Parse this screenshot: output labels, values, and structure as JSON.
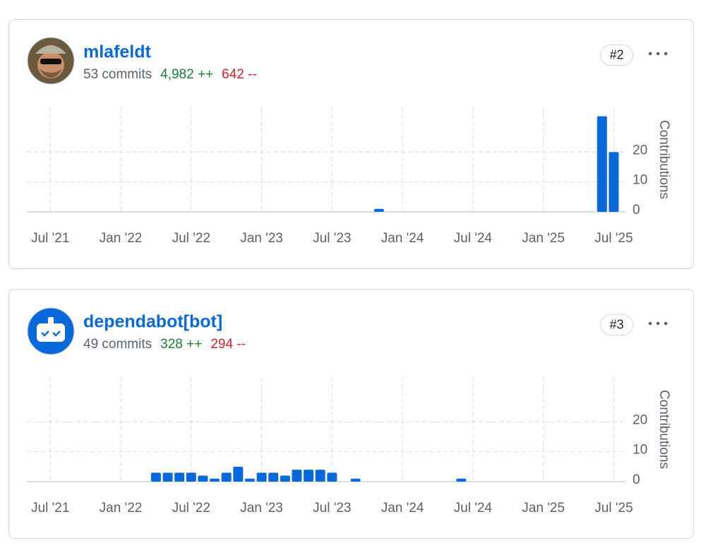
{
  "contributors": [
    {
      "name": "mlafeldt",
      "commits": "53 commits",
      "additions": "4,982 ++",
      "deletions": "642 --",
      "rank": "#2"
    },
    {
      "name": "dependabot[bot]",
      "commits": "49 commits",
      "additions": "328 ++",
      "deletions": "294 --",
      "rank": "#3"
    }
  ],
  "chart_data": [
    {
      "type": "bar",
      "ylabel": "Contributions",
      "color": "#0969da",
      "x": [
        "2023-11",
        "2025-06",
        "2025-07"
      ],
      "values": [
        1,
        32,
        20
      ],
      "xlim": [
        "2021-05",
        "2025-08"
      ],
      "xticks": [
        {
          "value": "2021-07",
          "label": "Jul '21"
        },
        {
          "value": "2022-01",
          "label": "Jan '22"
        },
        {
          "value": "2022-07",
          "label": "Jul '22"
        },
        {
          "value": "2023-01",
          "label": "Jan '23"
        },
        {
          "value": "2023-07",
          "label": "Jul '23"
        },
        {
          "value": "2024-01",
          "label": "Jan '24"
        },
        {
          "value": "2024-07",
          "label": "Jul '24"
        },
        {
          "value": "2025-01",
          "label": "Jan '25"
        },
        {
          "value": "2025-07",
          "label": "Jul '25"
        }
      ],
      "ylim": [
        0,
        35
      ],
      "yticks": [
        0,
        10,
        20
      ],
      "grid": true
    },
    {
      "type": "bar",
      "ylabel": "Contributions",
      "color": "#0969da",
      "x": [
        "2022-04",
        "2022-05",
        "2022-06",
        "2022-07",
        "2022-08",
        "2022-09",
        "2022-10",
        "2022-11",
        "2022-12",
        "2023-01",
        "2023-02",
        "2023-03",
        "2023-04",
        "2023-05",
        "2023-06",
        "2023-07",
        "2023-09",
        "2024-06"
      ],
      "values": [
        3,
        3,
        3,
        3,
        2,
        1,
        3,
        5,
        1,
        3,
        3,
        2,
        4,
        4,
        4,
        3,
        1,
        1
      ],
      "xlim": [
        "2021-05",
        "2025-08"
      ],
      "xticks": [
        {
          "value": "2021-07",
          "label": "Jul '21"
        },
        {
          "value": "2022-01",
          "label": "Jan '22"
        },
        {
          "value": "2022-07",
          "label": "Jul '22"
        },
        {
          "value": "2023-01",
          "label": "Jan '23"
        },
        {
          "value": "2023-07",
          "label": "Jul '23"
        },
        {
          "value": "2024-01",
          "label": "Jan '24"
        },
        {
          "value": "2024-07",
          "label": "Jul '24"
        },
        {
          "value": "2025-01",
          "label": "Jan '25"
        },
        {
          "value": "2025-07",
          "label": "Jul '25"
        }
      ],
      "ylim": [
        0,
        35
      ],
      "yticks": [
        0,
        10,
        20
      ],
      "grid": true
    }
  ]
}
